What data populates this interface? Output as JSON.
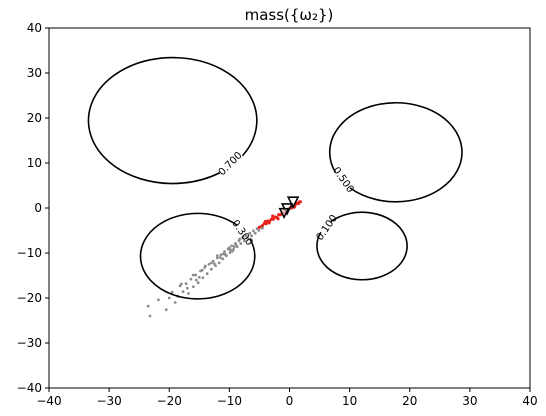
{
  "chart_data": {
    "type": "scatter",
    "title": "mass({ω₂})",
    "xlabel": "",
    "ylabel": "",
    "xlim": [
      -40,
      40
    ],
    "ylim": [
      -40,
      40
    ],
    "xticks": [
      -40,
      -30,
      -20,
      -10,
      0,
      10,
      20,
      30,
      40
    ],
    "yticks": [
      -40,
      -30,
      -20,
      -10,
      0,
      10,
      20,
      30,
      40
    ],
    "xtick_labels": [
      "−40",
      "−30",
      "−20",
      "−10",
      "0",
      "10",
      "20",
      "30",
      "40"
    ],
    "ytick_labels": [
      "−40",
      "−30",
      "−20",
      "−10",
      "0",
      "10",
      "20",
      "30",
      "40"
    ],
    "grid": false,
    "contours": {
      "center": [
        0,
        0
      ],
      "levels": [
        {
          "label": "0.100",
          "radius": 7.5
        },
        {
          "label": "0.300",
          "radius": 9.5
        },
        {
          "label": "0.500",
          "radius": 11.0
        },
        {
          "label": "0.700",
          "radius": 14.0
        }
      ],
      "color": "#000000"
    },
    "series": [
      {
        "kind": "gray-points",
        "color": "#8c8c8c",
        "points": [
          [
            -23.2,
            -24.0
          ],
          [
            -23.5,
            -21.8
          ],
          [
            -21.8,
            -20.4
          ],
          [
            -20.5,
            -22.6
          ],
          [
            -20.0,
            -20.0
          ],
          [
            -19.5,
            -18.7
          ],
          [
            -19.0,
            -21.0
          ],
          [
            -18.6,
            -19.6
          ],
          [
            -18.2,
            -17.3
          ],
          [
            -17.7,
            -18.6
          ],
          [
            -17.2,
            -16.8
          ],
          [
            -16.8,
            -19.0
          ],
          [
            -16.4,
            -15.8
          ],
          [
            -16.0,
            -17.5
          ],
          [
            -15.6,
            -14.9
          ],
          [
            -15.2,
            -16.6
          ],
          [
            -14.8,
            -14.0
          ],
          [
            -14.4,
            -15.5
          ],
          [
            -14.1,
            -13.2
          ],
          [
            -13.7,
            -14.6
          ],
          [
            -13.4,
            -12.5
          ],
          [
            -13.0,
            -13.6
          ],
          [
            -12.7,
            -11.8
          ],
          [
            -12.3,
            -12.8
          ],
          [
            -12.0,
            -11.1
          ],
          [
            -11.7,
            -12.2
          ],
          [
            -11.4,
            -10.4
          ],
          [
            -11.1,
            -11.3
          ],
          [
            -10.8,
            -9.7
          ],
          [
            -10.5,
            -10.6
          ],
          [
            -10.2,
            -9.1
          ],
          [
            -9.9,
            -9.9
          ],
          [
            -9.6,
            -8.4
          ],
          [
            -9.3,
            -9.2
          ],
          [
            -9.0,
            -7.9
          ],
          [
            -8.7,
            -8.6
          ],
          [
            -8.4,
            -7.3
          ],
          [
            -8.1,
            -7.9
          ],
          [
            -7.8,
            -6.7
          ],
          [
            -7.5,
            -7.3
          ],
          [
            -7.2,
            -6.2
          ],
          [
            -6.9,
            -6.8
          ],
          [
            -6.6,
            -5.6
          ],
          [
            -6.3,
            -6.2
          ],
          [
            -6.0,
            -5.1
          ],
          [
            -5.7,
            -5.6
          ],
          [
            -5.4,
            -4.6
          ],
          [
            -5.1,
            -5.0
          ],
          [
            -4.8,
            -4.1
          ],
          [
            -4.5,
            -4.5
          ],
          [
            -15.0,
            -15.4
          ],
          [
            -14.0,
            -12.9
          ],
          [
            -13.0,
            -12.2
          ],
          [
            -12.0,
            -10.6
          ],
          [
            -11.0,
            -10.2
          ],
          [
            -10.0,
            -8.8
          ],
          [
            -9.5,
            -9.6
          ],
          [
            -8.9,
            -8.1
          ],
          [
            -8.3,
            -6.9
          ],
          [
            -7.7,
            -6.4
          ],
          [
            -18.0,
            -16.9
          ],
          [
            -17.0,
            -17.8
          ],
          [
            -16.0,
            -14.9
          ],
          [
            -15.5,
            -16.0
          ],
          [
            -14.5,
            -13.8
          ],
          [
            -12.5,
            -12.4
          ],
          [
            -11.5,
            -11.0
          ],
          [
            -10.7,
            -10.3
          ],
          [
            -9.8,
            -9.3
          ],
          [
            -9.2,
            -8.6
          ]
        ]
      },
      {
        "kind": "red-points",
        "color": "#e8231d",
        "points": [
          [
            -4.5,
            -3.9
          ],
          [
            -4.2,
            -3.4
          ],
          [
            -3.9,
            -3.5
          ],
          [
            -3.6,
            -2.9
          ],
          [
            -3.3,
            -2.9
          ],
          [
            -3.0,
            -2.5
          ],
          [
            -2.7,
            -2.5
          ],
          [
            -2.4,
            -2.0
          ],
          [
            -2.1,
            -2.1
          ],
          [
            -1.8,
            -1.5
          ],
          [
            -1.5,
            -1.5
          ],
          [
            -1.2,
            -1.0
          ],
          [
            -0.9,
            -1.0
          ],
          [
            -0.6,
            -0.5
          ],
          [
            -0.3,
            -0.4
          ],
          [
            0.0,
            0.0
          ],
          [
            0.3,
            0.0
          ],
          [
            0.6,
            0.5
          ],
          [
            0.9,
            0.5
          ],
          [
            1.2,
            1.0
          ],
          [
            1.5,
            1.0
          ],
          [
            1.8,
            1.4
          ],
          [
            -2.8,
            -1.8
          ],
          [
            -1.9,
            -2.4
          ],
          [
            -0.8,
            -0.3
          ],
          [
            -5.0,
            -4.3
          ],
          [
            -4.0,
            -3.0
          ],
          [
            0.8,
            0.2
          ],
          [
            1.6,
            1.3
          ],
          [
            -3.4,
            -3.3
          ]
        ]
      }
    ],
    "markers": [
      {
        "type": "triangle-down",
        "x": 0.6,
        "y": 1.3,
        "size": 1.3
      },
      {
        "type": "triangle-down",
        "x": -0.4,
        "y": -0.2,
        "size": 1.3
      },
      {
        "type": "triangle-down",
        "x": -0.9,
        "y": -1.1,
        "size": 1.0
      }
    ]
  }
}
